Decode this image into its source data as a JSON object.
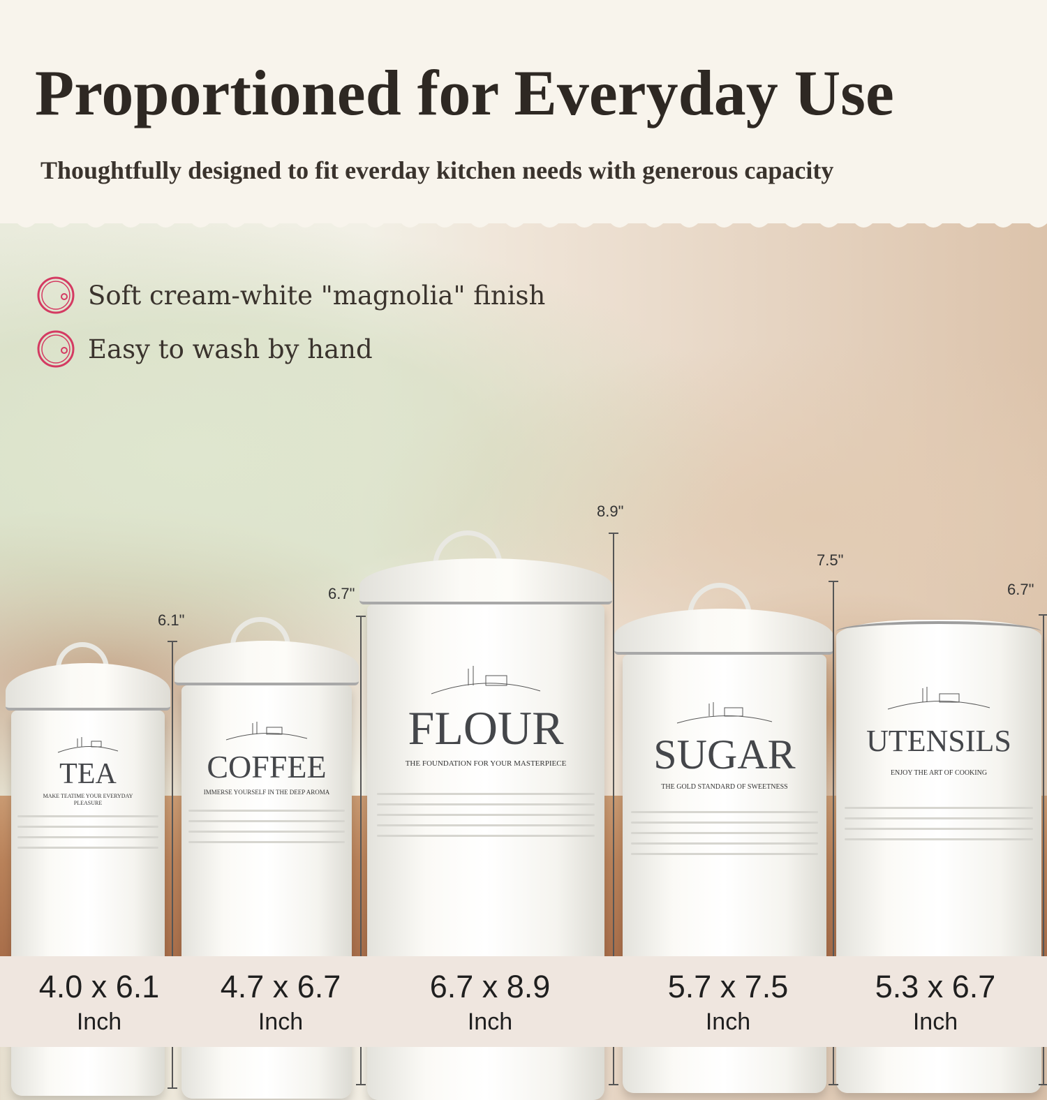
{
  "header": {
    "title": "Proportioned for Everyday Use",
    "subtitle": "Thoughtfully designed to fit everday kitchen needs with generous capacity"
  },
  "features": [
    {
      "icon": "magnolia-circle-icon",
      "text": "Soft cream-white \"magnolia\" finish"
    },
    {
      "icon": "magnolia-circle-icon",
      "text": "Easy to wash by hand"
    }
  ],
  "accent_color": "#d43a62",
  "canisters": [
    {
      "name": "TEA",
      "tagline": "MAKE TEATIME YOUR EVERYDAY PLEASURE",
      "height": "6.1\"",
      "dims": "4.0 x 6.1",
      "unit": "Inch"
    },
    {
      "name": "COFFEE",
      "tagline": "IMMERSE YOURSELF IN THE DEEP AROMA",
      "height": "6.7\"",
      "dims": "4.7 x 6.7",
      "unit": "Inch"
    },
    {
      "name": "FLOUR",
      "tagline": "THE FOUNDATION FOR YOUR MASTERPIECE",
      "height": "8.9\"",
      "dims": "6.7 x 8.9",
      "unit": "Inch"
    },
    {
      "name": "SUGAR",
      "tagline": "THE GOLD STANDARD OF SWEETNESS",
      "height": "7.5\"",
      "dims": "5.7 x 7.5",
      "unit": "Inch"
    },
    {
      "name": "UTENSILS",
      "tagline": "ENJOY THE ART OF COOKING",
      "height": "6.7\"",
      "dims": "5.3 x 6.7",
      "unit": "Inch"
    }
  ]
}
